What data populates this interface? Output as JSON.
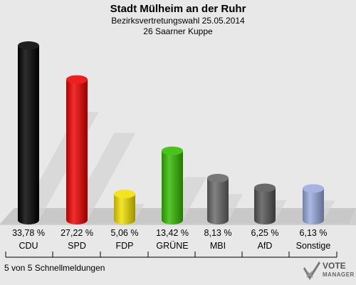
{
  "header": {
    "title": "Stadt Mülheim an der Ruhr",
    "subtitle1": "Bezirksvertretungswahl 25.05.2014",
    "subtitle2": "26 Saarner Kuppe"
  },
  "footer": {
    "note": "5 von 5 Schnellmeldungen",
    "logo_line1": "VOTE",
    "logo_line2": "MANAGER"
  },
  "chart_data": {
    "type": "bar",
    "categories": [
      "CDU",
      "SPD",
      "FDP",
      "GRÜNE",
      "MBI",
      "AfD",
      "Sonstige"
    ],
    "values": [
      33.78,
      27.22,
      5.06,
      13.42,
      8.13,
      6.25,
      6.13
    ],
    "value_labels": [
      "33,78 %",
      "27,22 %",
      "5,06 %",
      "13,42 %",
      "8,13 %",
      "6,25 %",
      "6,13 %"
    ],
    "colors": [
      "#000000",
      "#ee0000",
      "#f2e000",
      "#33bb00",
      "#666666",
      "#555555",
      "#99aadd"
    ],
    "ylim": [
      0,
      33.78
    ],
    "grid": false
  }
}
